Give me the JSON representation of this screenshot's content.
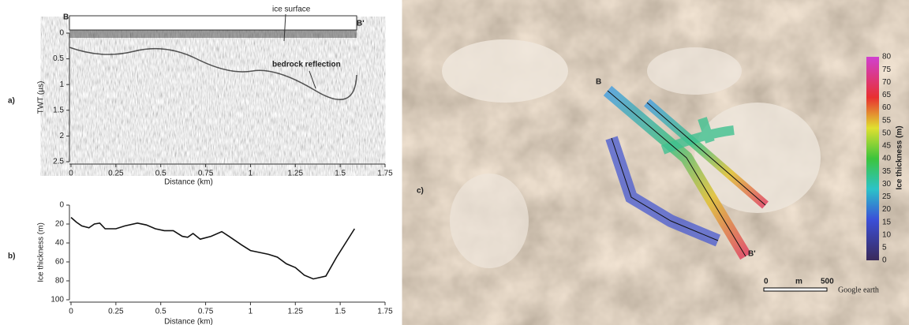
{
  "chart_data": [
    {
      "type": "image",
      "panel_label": "a)",
      "corner_left": "B",
      "corner_right": "B'",
      "annotations": [
        "ice surface",
        "bedrock reflection"
      ],
      "y_label": "TWT (µs)",
      "x_label": "Distance (km)",
      "xlim": [
        0,
        1.75
      ],
      "xticks": [
        0,
        0.25,
        0.5,
        0.75,
        1,
        1.25,
        1.5,
        1.75
      ],
      "ylim": [
        0,
        2.5
      ],
      "yticks": [
        0,
        0.5,
        1,
        1.5,
        2,
        2.5
      ],
      "y_inverted": true
    },
    {
      "type": "line",
      "panel_label": "b)",
      "y_label": "Ice thickness (m)",
      "x_label": "Distance (km)",
      "x": [
        0,
        0.03,
        0.06,
        0.1,
        0.13,
        0.16,
        0.19,
        0.25,
        0.3,
        0.37,
        0.42,
        0.47,
        0.52,
        0.57,
        0.62,
        0.65,
        0.68,
        0.72,
        0.78,
        0.84,
        0.88,
        0.95,
        1.0,
        1.05,
        1.1,
        1.15,
        1.2,
        1.25,
        1.3,
        1.35,
        1.42,
        1.48,
        1.53,
        1.58
      ],
      "values": [
        13,
        18,
        22,
        24,
        20,
        19,
        25,
        25,
        22,
        19,
        21,
        25,
        27,
        27,
        33,
        34,
        30,
        36,
        33,
        28,
        33,
        42,
        48,
        50,
        52,
        55,
        62,
        66,
        74,
        78,
        75,
        55,
        40,
        25
      ],
      "color": "#111111",
      "xlim": [
        0,
        1.75
      ],
      "xticks": [
        0,
        0.25,
        0.5,
        0.75,
        1,
        1.25,
        1.5,
        1.75
      ],
      "ylim": [
        0,
        100
      ],
      "yticks": [
        0,
        20,
        40,
        60,
        80,
        100
      ],
      "y_inverted": true
    }
  ],
  "map": {
    "panel_label": "c)",
    "points": [
      "B",
      "B'"
    ],
    "colorbar_label": "Ice thickness (m)",
    "colorbar_ticks": [
      0,
      5,
      10,
      15,
      20,
      25,
      30,
      35,
      40,
      45,
      50,
      55,
      60,
      65,
      70,
      75,
      80
    ],
    "scale_labels": [
      "0",
      "m",
      "500"
    ],
    "watermark": "Google earth"
  }
}
